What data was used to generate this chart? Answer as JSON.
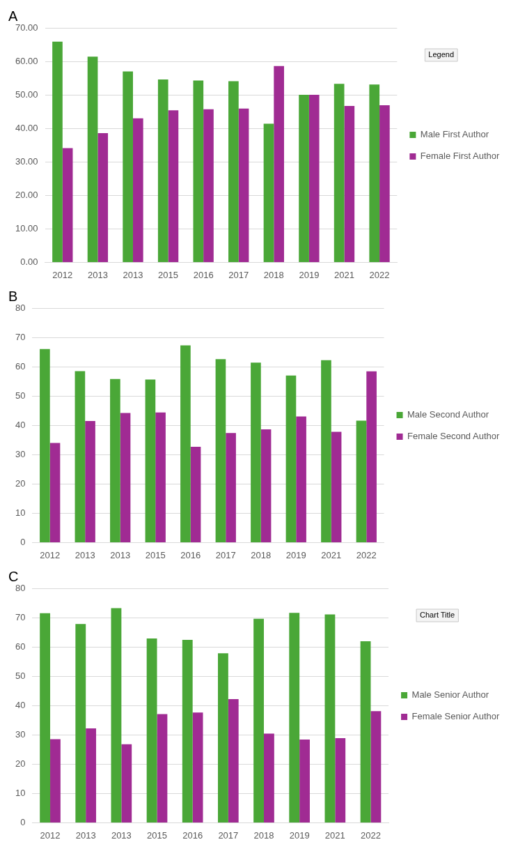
{
  "chart_data": [
    {
      "type": "bar",
      "title": "A",
      "categories": [
        "2012",
        "2013",
        "2013",
        "2015",
        "2016",
        "2017",
        "2018",
        "2019",
        "2021",
        "2022"
      ],
      "series": [
        {
          "name": "Male First Author",
          "color": "#4aa737",
          "values": [
            65.9,
            61.4,
            57.0,
            54.6,
            54.3,
            54.1,
            41.4,
            50.0,
            53.3,
            53.1
          ]
        },
        {
          "name": "Female First Author",
          "color": "#a02b93",
          "values": [
            34.1,
            38.6,
            43.0,
            45.4,
            45.7,
            45.9,
            58.6,
            50.0,
            46.7,
            46.9
          ]
        }
      ],
      "ylim": [
        0,
        70
      ],
      "yticks": [
        {
          "value": 0,
          "label": "0.00"
        },
        {
          "value": 10,
          "label": "10.00"
        },
        {
          "value": 20,
          "label": "20.00"
        },
        {
          "value": 30,
          "label": "30.00"
        },
        {
          "value": 40,
          "label": "40.00"
        },
        {
          "value": 50,
          "label": "50.00"
        },
        {
          "value": 60,
          "label": "60.00"
        },
        {
          "value": 70,
          "label": "70.00"
        }
      ],
      "grid": "y",
      "legend": "right",
      "annotations": [
        "Legend"
      ]
    },
    {
      "type": "bar",
      "title": "B",
      "categories": [
        "2012",
        "2013",
        "2013",
        "2015",
        "2016",
        "2017",
        "2018",
        "2019",
        "2021",
        "2022"
      ],
      "series": [
        {
          "name": "Male Second Author",
          "color": "#4aa737",
          "values": [
            66.0,
            58.5,
            55.8,
            55.6,
            67.3,
            62.6,
            61.4,
            57.0,
            62.2,
            41.6
          ]
        },
        {
          "name": "Female Second Author",
          "color": "#a02b93",
          "values": [
            34.0,
            41.5,
            44.2,
            44.4,
            32.7,
            37.4,
            38.6,
            43.0,
            37.8,
            58.4
          ]
        }
      ],
      "ylim": [
        0,
        80
      ],
      "yticks": [
        0,
        10,
        20,
        30,
        40,
        50,
        60,
        70,
        80
      ],
      "grid": "y",
      "legend": "right"
    },
    {
      "type": "bar",
      "title": "C",
      "categories": [
        "2012",
        "2013",
        "2013",
        "2015",
        "2016",
        "2017",
        "2018",
        "2019",
        "2021",
        "2022"
      ],
      "series": [
        {
          "name": "Male Senior Author",
          "color": "#4aa737",
          "values": [
            71.5,
            67.8,
            73.2,
            62.9,
            62.4,
            57.8,
            69.6,
            71.6,
            71.1,
            61.9
          ]
        },
        {
          "name": "Female Senior Author",
          "color": "#a02b93",
          "values": [
            28.5,
            32.2,
            26.8,
            37.1,
            37.6,
            42.2,
            30.4,
            28.4,
            28.9,
            38.1
          ]
        }
      ],
      "ylim": [
        0,
        80
      ],
      "yticks": [
        0,
        10,
        20,
        30,
        40,
        50,
        60,
        70,
        80
      ],
      "grid": "y",
      "legend": "right",
      "annotations": [
        "Chart Title"
      ]
    }
  ]
}
